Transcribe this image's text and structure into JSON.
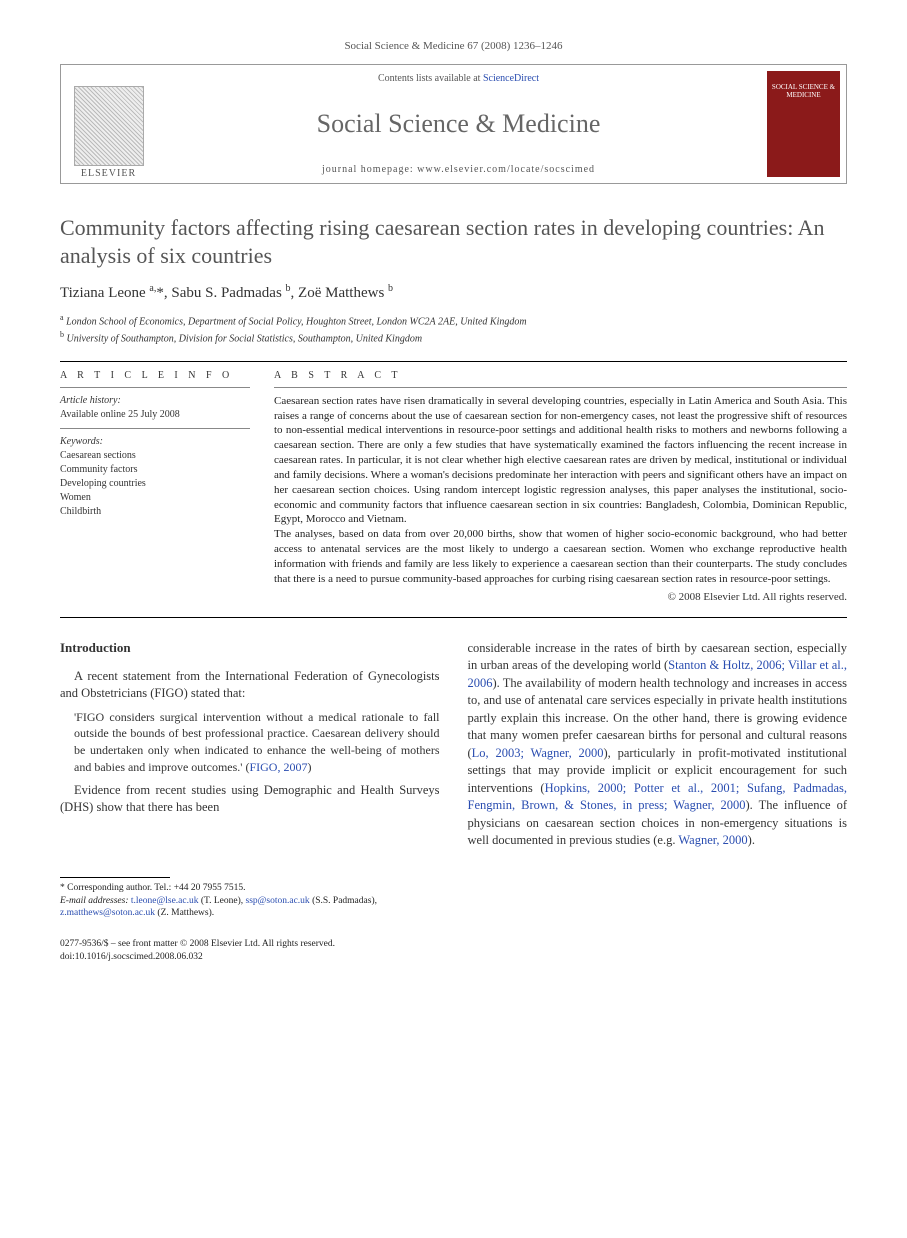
{
  "header_citation": "Social Science & Medicine 67 (2008) 1236–1246",
  "banner": {
    "publisher_label": "ELSEVIER",
    "contents_prefix": "Contents lists available at ",
    "contents_link": "ScienceDirect",
    "journal_name": "Social Science & Medicine",
    "homepage_prefix": "journal homepage: ",
    "homepage_url": "www.elsevier.com/locate/socscimed",
    "cover_text": "SOCIAL SCIENCE & MEDICINE"
  },
  "title": "Community factors affecting rising caesarean section rates in developing countries: An analysis of six countries",
  "authors_html": "Tiziana Leone <sup>a,</sup>*, Sabu S. Padmadas <sup>b</sup>, Zoë Matthews <sup>b</sup>",
  "affiliations": {
    "a": "London School of Economics, Department of Social Policy, Houghton Street, London WC2A 2AE, United Kingdom",
    "b": "University of Southampton, Division for Social Statistics, Southampton, United Kingdom"
  },
  "article_info": {
    "heading": "A R T I C L E   I N F O",
    "history_label": "Article history:",
    "history_text": "Available online 25 July 2008",
    "keywords_label": "Keywords:",
    "keywords": [
      "Caesarean sections",
      "Community factors",
      "Developing countries",
      "Women",
      "Childbirth"
    ]
  },
  "abstract": {
    "heading": "A B S T R A C T",
    "para1": "Caesarean section rates have risen dramatically in several developing countries, especially in Latin America and South Asia. This raises a range of concerns about the use of caesarean section for non-emergency cases, not least the progressive shift of resources to non-essential medical interventions in resource-poor settings and additional health risks to mothers and newborns following a caesarean section. There are only a few studies that have systematically examined the factors influencing the recent increase in caesarean rates. In particular, it is not clear whether high elective caesarean rates are driven by medical, institutional or individual and family decisions. Where a woman's decisions predominate her interaction with peers and significant others have an impact on her caesarean section choices. Using random intercept logistic regression analyses, this paper analyses the institutional, socio-economic and community factors that influence caesarean section in six countries: Bangladesh, Colombia, Dominican Republic, Egypt, Morocco and Vietnam.",
    "para2": "The analyses, based on data from over 20,000 births, show that women of higher socio-economic background, who had better access to antenatal services are the most likely to undergo a caesarean section. Women who exchange reproductive health information with friends and family are less likely to experience a caesarean section than their counterparts. The study concludes that there is a need to pursue community-based approaches for curbing rising caesarean section rates in resource-poor settings.",
    "copyright": "© 2008 Elsevier Ltd. All rights reserved."
  },
  "body": {
    "intro_heading": "Introduction",
    "left": {
      "p1": "A recent statement from the International Federation of Gynecologists and Obstetricians (FIGO) stated that:",
      "quote_pre": "'FIGO considers surgical intervention without a medical rationale to fall outside the bounds of best professional practice. Caesarean delivery should be undertaken only when indicated to enhance the well-being of mothers and babies and improve outcomes.' (",
      "quote_cite": "FIGO, 2007",
      "quote_post": ")",
      "p2": "Evidence from recent studies using Demographic and Health Surveys (DHS) show that there has been"
    },
    "right": {
      "r1_pre": "considerable increase in the rates of birth by caesarean section, especially in urban areas of the developing world (",
      "r1_cite1": "Stanton & Holtz, 2006; Villar et al., 2006",
      "r1_mid": "). The availability of modern health technology and increases in access to, and use of antenatal care services especially in private health institutions partly explain this increase. On the other hand, there is growing evidence that many women prefer caesarean births for personal and cultural reasons (",
      "r1_cite2": "Lo, 2003; Wagner, 2000",
      "r1_mid2": "), particularly in profit-motivated institutional settings that may provide implicit or explicit encouragement for such interventions (",
      "r1_cite3": "Hopkins, 2000; Potter et al., 2001; Sufang, Padmadas, Fengmin, Brown, & Stones, in press; Wagner, 2000",
      "r1_mid3": "). The influence of physicians on caesarean section choices in non-emergency situations is well documented in previous studies (e.g. ",
      "r1_cite4": "Wagner, 2000",
      "r1_end": ")."
    }
  },
  "footnote": {
    "corr_label": "* Corresponding author. Tel.: ",
    "corr_tel": "+44 20 7955 7515.",
    "email_label": "E-mail addresses: ",
    "emails": [
      {
        "addr": "t.leone@lse.ac.uk",
        "who": "(T. Leone)"
      },
      {
        "addr": "ssp@soton.ac.uk",
        "who": "(S.S. Padmadas)"
      },
      {
        "addr": "z.matthews@soton.ac.uk",
        "who": "(Z. Matthews)"
      }
    ]
  },
  "footer": {
    "issn_line": "0277-9536/$ – see front matter © 2008 Elsevier Ltd. All rights reserved.",
    "doi_line": "doi:10.1016/j.socscimed.2008.06.032"
  },
  "colors": {
    "link": "#2a4db0",
    "cover_bg": "#8b1a1a",
    "text": "#333333",
    "rule": "#000000"
  }
}
